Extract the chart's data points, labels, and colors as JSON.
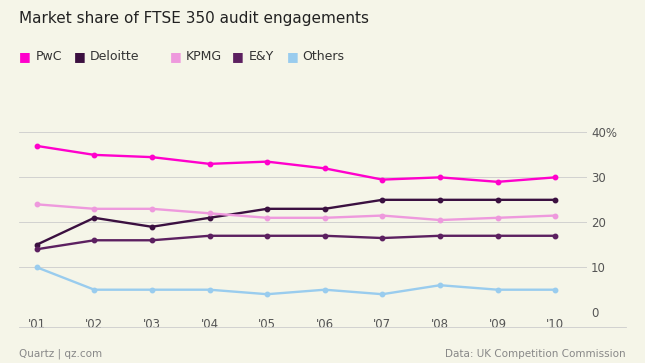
{
  "title": "Market share of FTSE 350 audit engagements",
  "years": [
    2001,
    2002,
    2003,
    2004,
    2005,
    2006,
    2007,
    2008,
    2009,
    2010
  ],
  "series_order": [
    "PwC",
    "Deloitte",
    "KPMG",
    "E&Y",
    "Others"
  ],
  "series": {
    "PwC": [
      37,
      35,
      34.5,
      33,
      33.5,
      32,
      29.5,
      30,
      29,
      30
    ],
    "Deloitte": [
      15,
      21,
      19,
      21,
      23,
      23,
      25,
      25,
      25,
      25
    ],
    "KPMG": [
      24,
      23,
      23,
      22,
      21,
      21,
      21.5,
      20.5,
      21,
      21.5
    ],
    "E&Y": [
      14,
      16,
      16,
      17,
      17,
      17,
      16.5,
      17,
      17,
      17
    ],
    "Others": [
      10,
      5,
      5,
      5,
      4,
      5,
      4,
      6,
      5,
      5
    ]
  },
  "colors": {
    "PwC": "#FF00CC",
    "Deloitte": "#3B1040",
    "KPMG": "#EE99DD",
    "E&Y": "#5C2060",
    "Others": "#99CCEE"
  },
  "ylim": [
    0,
    42
  ],
  "yticks": [
    0,
    10,
    20,
    30,
    40
  ],
  "ytick_labels": [
    "0",
    "10",
    "20",
    "30",
    "40%"
  ],
  "footer_left": "Quartz | qz.com",
  "footer_right": "Data: UK Competition Commission",
  "bg_color": "#F5F5E8",
  "title_fontsize": 11,
  "legend_fontsize": 9,
  "axis_fontsize": 8.5,
  "footer_fontsize": 7.5
}
